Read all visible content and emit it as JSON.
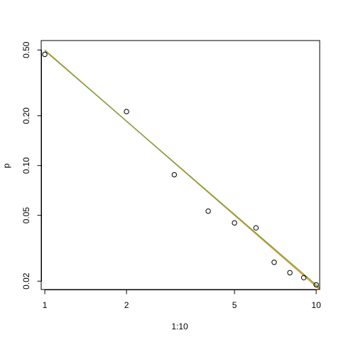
{
  "chart_data": {
    "type": "scatter",
    "title": "",
    "xlabel": "1:10",
    "ylabel": "p",
    "x_scale": "log",
    "y_scale": "log",
    "xlim": [
      0.97,
      10.3
    ],
    "ylim": [
      0.0178,
      0.57
    ],
    "x_ticks": [
      1,
      2,
      5,
      10
    ],
    "x_tick_labels": [
      "1",
      "2",
      "5",
      "10"
    ],
    "y_ticks": [
      0.02,
      0.05,
      0.1,
      0.2,
      0.5
    ],
    "y_tick_labels": [
      "0.02",
      "0.05",
      "0.10",
      "0.20",
      "0.50"
    ],
    "grid": false,
    "legend": "none",
    "series": [
      {
        "type": "scatter",
        "marker": "open-circle",
        "color": "#000000",
        "x": [
          1,
          2,
          3,
          4,
          5,
          6,
          7,
          8,
          9,
          10
        ],
        "y": [
          0.47,
          0.212,
          0.088,
          0.053,
          0.045,
          0.042,
          0.026,
          0.0225,
          0.021,
          0.019
        ]
      },
      {
        "type": "line",
        "color": "#e39b3c",
        "width": 1.6,
        "x": [
          1,
          10.3
        ],
        "y": [
          0.5,
          0.0178
        ]
      },
      {
        "type": "line",
        "color": "#69a043",
        "width": 1.2,
        "x": [
          1,
          10.3
        ],
        "y": [
          0.495,
          0.0182
        ]
      }
    ]
  }
}
